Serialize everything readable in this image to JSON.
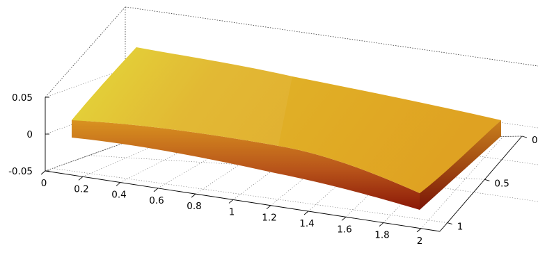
{
  "chart_data": {
    "type": "surface",
    "title": "",
    "xlabel": "",
    "ylabel": "",
    "zlabel": "",
    "x_ticks": [
      "0",
      "0.2",
      "0.4",
      "0.6",
      "0.8",
      "1",
      "1.2",
      "1.4",
      "1.6",
      "1.8",
      "2"
    ],
    "y_ticks": [
      "0",
      "0.5",
      "1"
    ],
    "z_ticks": [
      "0.05",
      "0",
      "-0.05"
    ],
    "xlim": [
      0,
      2.1
    ],
    "ylim": [
      0,
      1.1
    ],
    "zlim": [
      -0.05,
      0.05
    ],
    "grid": true,
    "slab": {
      "x_range": [
        0,
        2
      ],
      "y_range": [
        0,
        1
      ],
      "z_top": 0.012,
      "z_bottom": -0.008,
      "top_color_left": "#e1d12d",
      "top_color_right": "#e0a423",
      "side_color_top": "#d8921f",
      "side_color_bottom": "#8b1a07"
    }
  }
}
